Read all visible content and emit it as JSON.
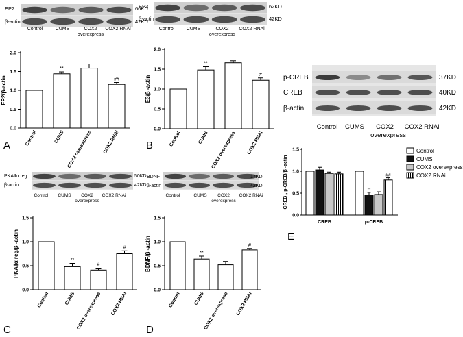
{
  "chart_data": [
    {
      "panel": "A",
      "type": "bar",
      "ylabel": "EP2/β-actin",
      "ylim": [
        0.0,
        2.0
      ],
      "yticks": [
        "0.0",
        "0.5",
        "1.0",
        "1.5",
        "2.0"
      ],
      "categories": [
        "Control",
        "CUMS",
        "COX2 overexpress",
        "COX2 RNAi"
      ],
      "values": [
        1.0,
        1.44,
        1.59,
        1.16
      ],
      "errors": [
        0,
        0.05,
        0.11,
        0.05
      ],
      "annotations": [
        "",
        "**",
        "",
        "##"
      ],
      "blot": {
        "bands": [
          "EP2",
          "β-actin"
        ],
        "weights": [
          "66KD",
          "42KD"
        ],
        "lanes": [
          "Control",
          "CUMS",
          "COX2 overexpress",
          "COX2 RNAi"
        ]
      }
    },
    {
      "panel": "B",
      "type": "bar",
      "ylabel": "E3/β -actin",
      "ylim": [
        0.0,
        2.0
      ],
      "yticks": [
        "0.0",
        "0.5",
        "1.0",
        "1.5",
        "2.0"
      ],
      "categories": [
        "Control",
        "CUMS",
        "COX2 overexpress",
        "COX2 RNAi"
      ],
      "values": [
        1.0,
        1.48,
        1.66,
        1.22
      ],
      "errors": [
        0,
        0.08,
        0.05,
        0.06
      ],
      "annotations": [
        "",
        "**",
        "",
        "#"
      ],
      "blot": {
        "bands": [
          "EP3",
          "β-actin"
        ],
        "weights": [
          "62KD",
          "42KD"
        ],
        "lanes": [
          "Control",
          "CUMS",
          "COX2 overexpress",
          "COX2 RNAi"
        ]
      }
    },
    {
      "panel": "C",
      "type": "bar",
      "ylabel": "PKAⅡα reg/β -actin",
      "ylim": [
        0.0,
        1.5
      ],
      "yticks": [
        "0.0",
        "0.5",
        "1.0",
        "1.5"
      ],
      "categories": [
        "Control",
        "CUMS",
        "COX2 overexpress",
        "COX2 RNAi"
      ],
      "values": [
        1.0,
        0.48,
        0.41,
        0.75
      ],
      "errors": [
        0,
        0.07,
        0.04,
        0.06
      ],
      "annotations": [
        "",
        "**",
        "#",
        "#"
      ],
      "blot": {
        "bands": [
          "PKAⅡα reg",
          "β-actin"
        ],
        "weights": [
          "50KD",
          "42KD"
        ],
        "lanes": [
          "Control",
          "CUMS",
          "COX2 overexpress",
          "COX2 RNAi"
        ]
      }
    },
    {
      "panel": "D",
      "type": "bar",
      "ylabel": "BDNF/β -actin",
      "ylim": [
        0.0,
        1.5
      ],
      "yticks": [
        "0.0",
        "0.5",
        "1.0",
        "1.5"
      ],
      "categories": [
        "Control",
        "CUMS",
        "COX2 overexpress",
        "COX2 RNAi"
      ],
      "values": [
        1.0,
        0.64,
        0.52,
        0.83
      ],
      "errors": [
        0,
        0.06,
        0.07,
        0.03
      ],
      "annotations": [
        "",
        "**",
        "",
        "#"
      ],
      "blot": {
        "bands": [
          "BDNF",
          "β-actin"
        ],
        "weights": [
          "17KD",
          "42KD"
        ],
        "lanes": [
          "Control",
          "CUMS",
          "COX2 overexpress",
          "COX2 RNAi"
        ]
      }
    },
    {
      "panel": "E",
      "type": "bar",
      "ylabel": "CREB , p-CREB/β -actin",
      "ylim": [
        0.0,
        1.5
      ],
      "yticks": [
        "0.0",
        "0.5",
        "1.0",
        "1.5"
      ],
      "categories": [
        "CREB",
        "p-CREB"
      ],
      "series": [
        {
          "name": "Control",
          "values": [
            1.0,
            1.0
          ],
          "errors": [
            0,
            0
          ],
          "annotations": [
            "",
            ""
          ]
        },
        {
          "name": "CUMS",
          "values": [
            1.03,
            0.46
          ],
          "errors": [
            0.06,
            0.06
          ],
          "annotations": [
            "",
            "**"
          ]
        },
        {
          "name": "COX2 overexpress",
          "values": [
            0.95,
            0.47
          ],
          "errors": [
            0.03,
            0.06
          ],
          "annotations": [
            "",
            ""
          ]
        },
        {
          "name": "COX2 RNAi",
          "values": [
            0.94,
            0.8
          ],
          "errors": [
            0.04,
            0.05
          ],
          "annotations": [
            "",
            "##"
          ]
        }
      ],
      "blot": {
        "bands": [
          "p-CREB",
          "CREB",
          "β-actin"
        ],
        "weights": [
          "37KD",
          "40KD",
          "42KD"
        ],
        "lanes": [
          "Control",
          "CUMS",
          "COX2 overexpress",
          "COX2 RNAi"
        ]
      }
    }
  ]
}
